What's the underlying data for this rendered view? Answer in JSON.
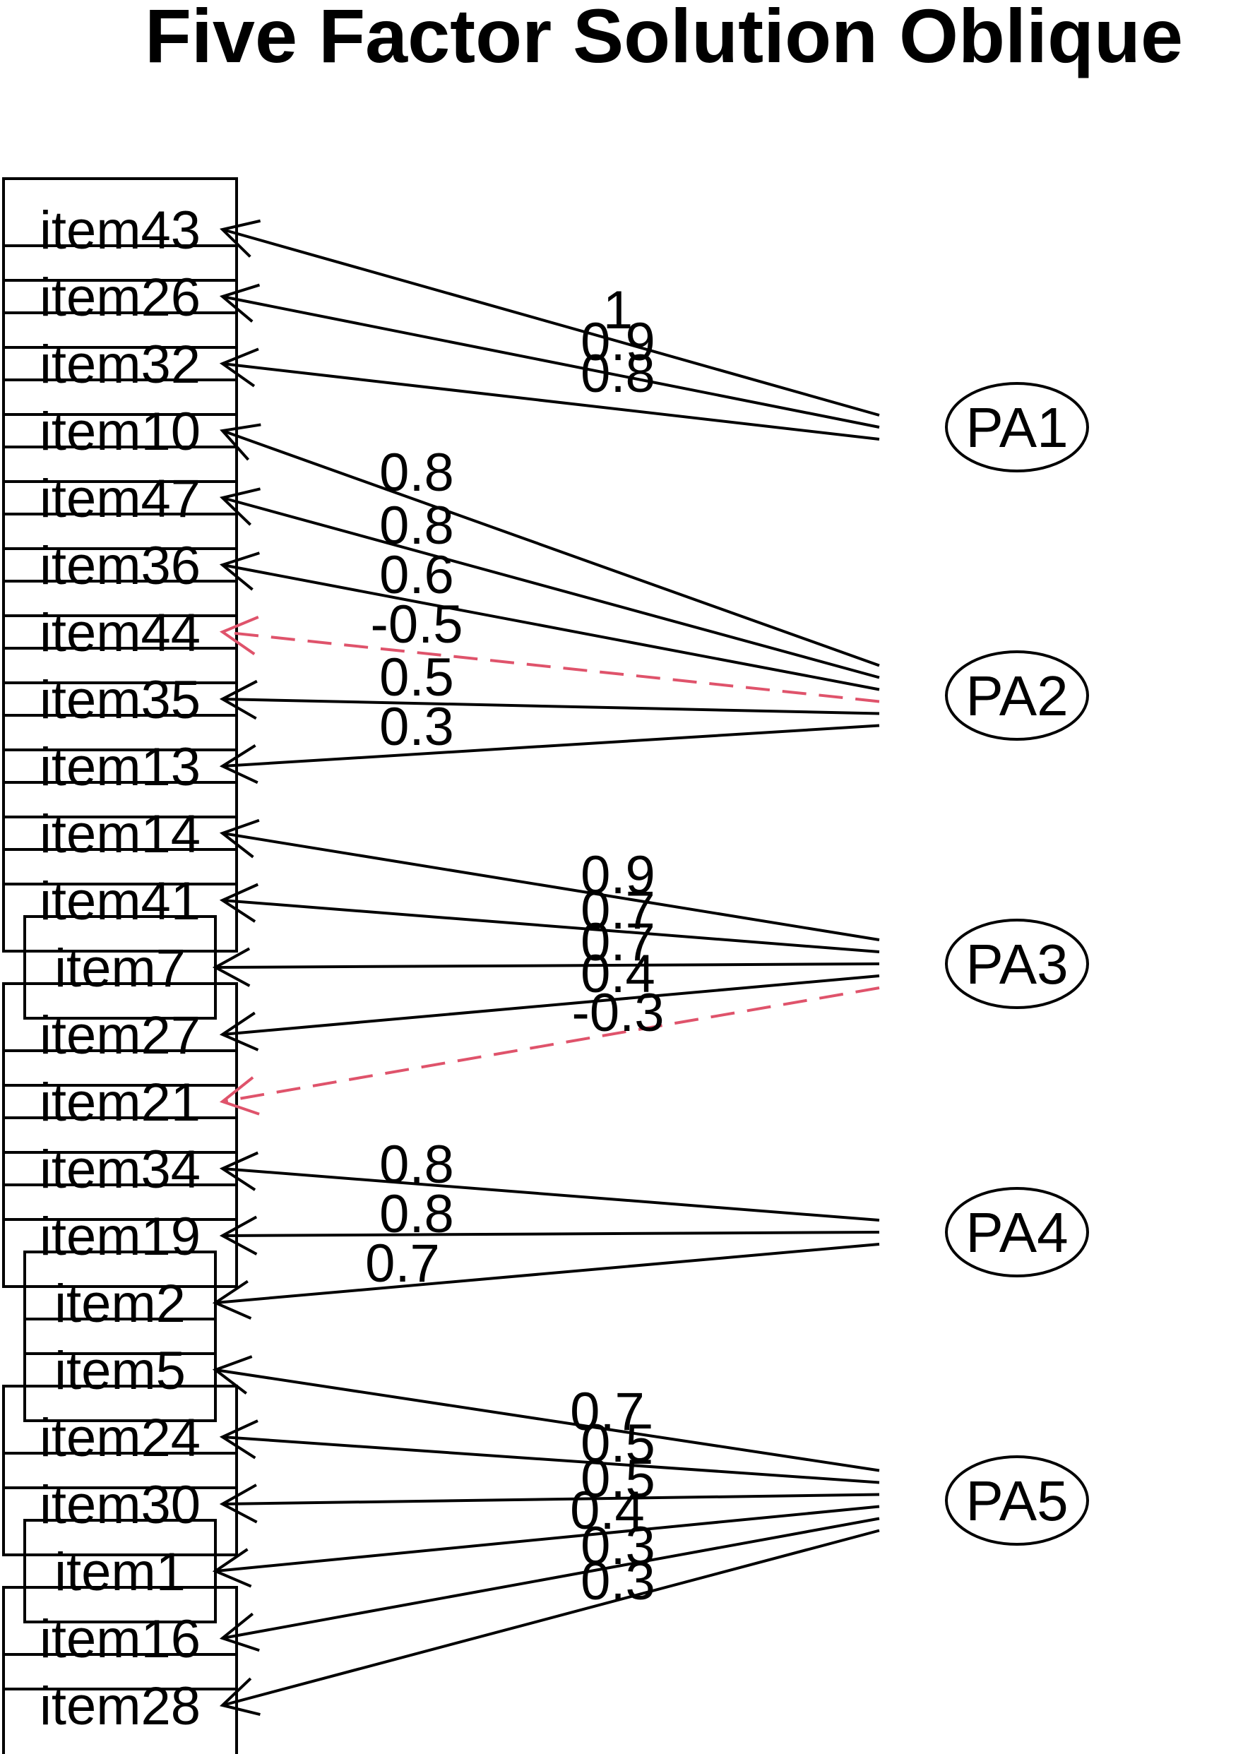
{
  "title": "Five Factor Solution Oblique",
  "diagram": {
    "positive_color": "#000000",
    "negative_color": "#DF536B",
    "factors": [
      "PA1",
      "PA2",
      "PA3",
      "PA4",
      "PA5"
    ],
    "items": [
      "item43",
      "item26",
      "item32",
      "item10",
      "item47",
      "item36",
      "item44",
      "item35",
      "item13",
      "item14",
      "item41",
      "item7",
      "item27",
      "item21",
      "item34",
      "item19",
      "item2",
      "item5",
      "item24",
      "item30",
      "item1",
      "item16",
      "item28"
    ],
    "loadings": [
      {
        "factor": "PA1",
        "item": "item43",
        "value": "1",
        "negative": false
      },
      {
        "factor": "PA1",
        "item": "item26",
        "value": "0.9",
        "negative": false
      },
      {
        "factor": "PA1",
        "item": "item32",
        "value": "0.8",
        "negative": false
      },
      {
        "factor": "PA2",
        "item": "item10",
        "value": "0.8",
        "negative": false
      },
      {
        "factor": "PA2",
        "item": "item47",
        "value": "0.8",
        "negative": false
      },
      {
        "factor": "PA2",
        "item": "item36",
        "value": "0.6",
        "negative": false
      },
      {
        "factor": "PA2",
        "item": "item44",
        "value": "-0.5",
        "negative": true
      },
      {
        "factor": "PA2",
        "item": "item35",
        "value": "0.5",
        "negative": false
      },
      {
        "factor": "PA2",
        "item": "item13",
        "value": "0.3",
        "negative": false
      },
      {
        "factor": "PA3",
        "item": "item14",
        "value": "0.9",
        "negative": false
      },
      {
        "factor": "PA3",
        "item": "item41",
        "value": "0.7",
        "negative": false
      },
      {
        "factor": "PA3",
        "item": "item7",
        "value": "0.7",
        "negative": false
      },
      {
        "factor": "PA3",
        "item": "item27",
        "value": "0.4",
        "negative": false
      },
      {
        "factor": "PA3",
        "item": "item21",
        "value": "-0.3",
        "negative": true
      },
      {
        "factor": "PA4",
        "item": "item34",
        "value": "0.8",
        "negative": false
      },
      {
        "factor": "PA4",
        "item": "item19",
        "value": "0.8",
        "negative": false
      },
      {
        "factor": "PA4",
        "item": "item2",
        "value": "0.7",
        "negative": false
      },
      {
        "factor": "PA5",
        "item": "item5",
        "value": "0.7",
        "negative": false
      },
      {
        "factor": "PA5",
        "item": "item24",
        "value": "0.5",
        "negative": false
      },
      {
        "factor": "PA5",
        "item": "item30",
        "value": "0.5",
        "negative": false
      },
      {
        "factor": "PA5",
        "item": "item1",
        "value": "0.4",
        "negative": false
      },
      {
        "factor": "PA5",
        "item": "item16",
        "value": "0.3",
        "negative": false
      },
      {
        "factor": "PA5",
        "item": "item28",
        "value": "0.3",
        "negative": false
      }
    ]
  }
}
